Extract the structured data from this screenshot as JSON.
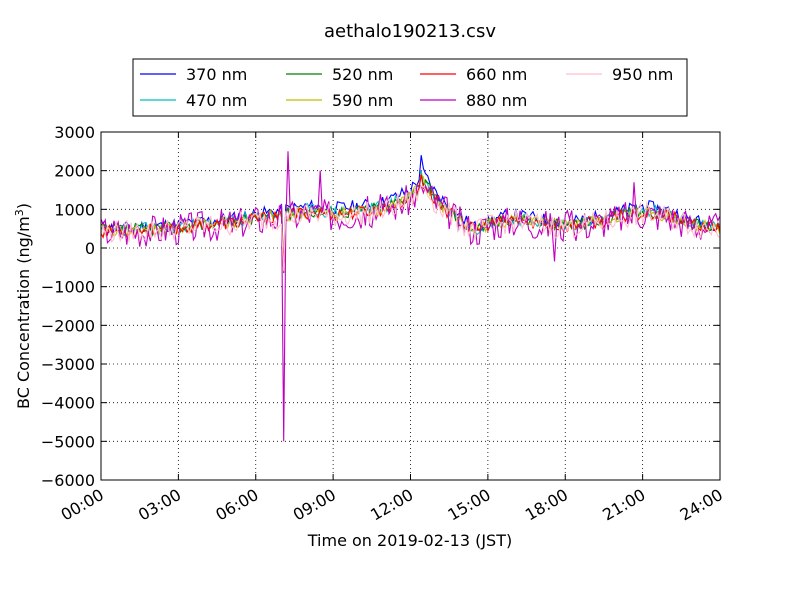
{
  "chart_data": {
    "type": "line",
    "title": "aethalo190213.csv",
    "xlabel": "Time on 2019-02-13 (JST)",
    "ylabel_main": "BC Concentration (ng/m",
    "ylabel_sup": "3",
    "ylabel_end": ")",
    "xlim": [
      "2019-02-13 00:00",
      "2019-02-14 00:00"
    ],
    "ylim": [
      -6000,
      3000
    ],
    "xticks": [
      "00:00",
      "03:00",
      "06:00",
      "09:00",
      "12:00",
      "15:00",
      "18:00",
      "21:00",
      "24:00"
    ],
    "xtick_hours": [
      0,
      3,
      6,
      9,
      12,
      15,
      18,
      21,
      24
    ],
    "yticks": [
      3000,
      2000,
      1000,
      0,
      -1000,
      -2000,
      -3000,
      -4000,
      -5000,
      -6000
    ],
    "ytick_labels": [
      "3000",
      "2000",
      "1000",
      "0",
      "−1000",
      "−2000",
      "−3000",
      "−4000",
      "−5000",
      "−6000"
    ],
    "grid": true,
    "legend_position": "top",
    "series": [
      {
        "name": "370 nm",
        "color": "#0000ff",
        "seed": 11
      },
      {
        "name": "470 nm",
        "color": "#00bfbf",
        "seed": 23
      },
      {
        "name": "520 nm",
        "color": "#008000",
        "seed": 37
      },
      {
        "name": "590 nm",
        "color": "#bfbf00",
        "seed": 41
      },
      {
        "name": "660 nm",
        "color": "#ff0000",
        "seed": 53
      },
      {
        "name": "880 nm",
        "color": "#bf00bf",
        "seed": 67
      },
      {
        "name": "950 nm",
        "color": "#ffc0cb",
        "seed": 79
      }
    ],
    "baseline_profile": {
      "hours": [
        0,
        1,
        2,
        3,
        4,
        5,
        6,
        7,
        8,
        9,
        10,
        11,
        12,
        12.5,
        13,
        14,
        14.5,
        15,
        16,
        17,
        18,
        19,
        20,
        21,
        22,
        23,
        24
      ],
      "values": [
        480,
        480,
        520,
        560,
        640,
        700,
        800,
        900,
        1000,
        950,
        1000,
        1100,
        1400,
        1800,
        1300,
        700,
        500,
        650,
        800,
        700,
        600,
        700,
        850,
        1000,
        900,
        650,
        550
      ]
    },
    "events": [
      {
        "hour": 7.1,
        "values_by_series": {
          "370 nm": -600,
          "470 nm": -600,
          "520 nm": -650,
          "590 nm": -600,
          "660 nm": -600,
          "880 nm": -5000,
          "950 nm": -600
        }
      },
      {
        "hour": 7.25,
        "values_by_series": {
          "880 nm": 2500
        }
      },
      {
        "hour": 12.4,
        "values_by_series": {
          "370 nm": 2400,
          "470 nm": 2000,
          "520 nm": 1900,
          "590 nm": 1900,
          "660 nm": 1900,
          "880 nm": 1600,
          "950 nm": 1600
        }
      },
      {
        "hour": 8.5,
        "values_by_series": {
          "880 nm": 2000
        }
      },
      {
        "hour": 17.6,
        "values_by_series": {
          "880 nm": -350
        }
      },
      {
        "hour": 20.7,
        "values_by_series": {
          "880 nm": 1700
        }
      }
    ]
  }
}
